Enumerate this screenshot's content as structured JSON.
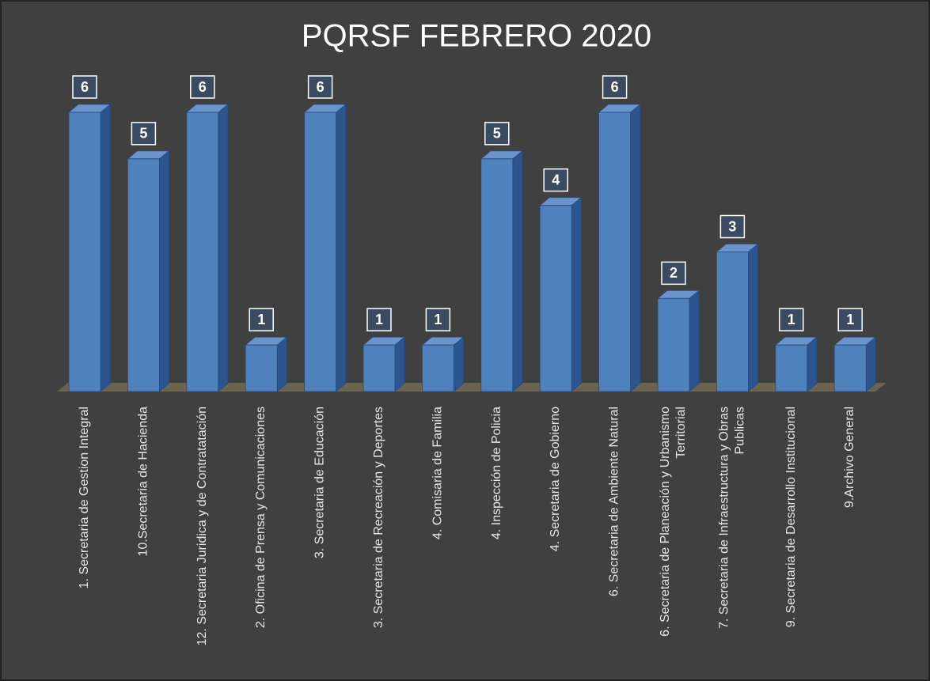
{
  "chart_data": {
    "type": "bar3d",
    "title": "PQRSF  FEBRERO  2020",
    "categories": [
      "1. Secretaria de Gestion Integral",
      "10.Secretaria de Hacienda",
      "12. Secretaria Juridica y de Contratatación",
      "2. Oficina de Prensa y Comunicaciones",
      "3. Secretaria de Educación",
      "3. Secretaria de Recreación y Deportes",
      "4. Comisaria de Familia",
      "4. Inspección de Policia",
      "4. Secretaria de Gobierno",
      "6. Secretaria de Ambiente Natural",
      "6. Secretaria de Planeación y Urbanismo Territorial",
      "7. Secretaria de Infraestructura y Obras Publicas",
      "9. Secretaria de Desarrollo Institucional",
      "9.Archivo General"
    ],
    "values": [
      6,
      5,
      6,
      1,
      6,
      1,
      1,
      5,
      4,
      6,
      2,
      3,
      1,
      1
    ],
    "color": "#4f81bd"
  }
}
